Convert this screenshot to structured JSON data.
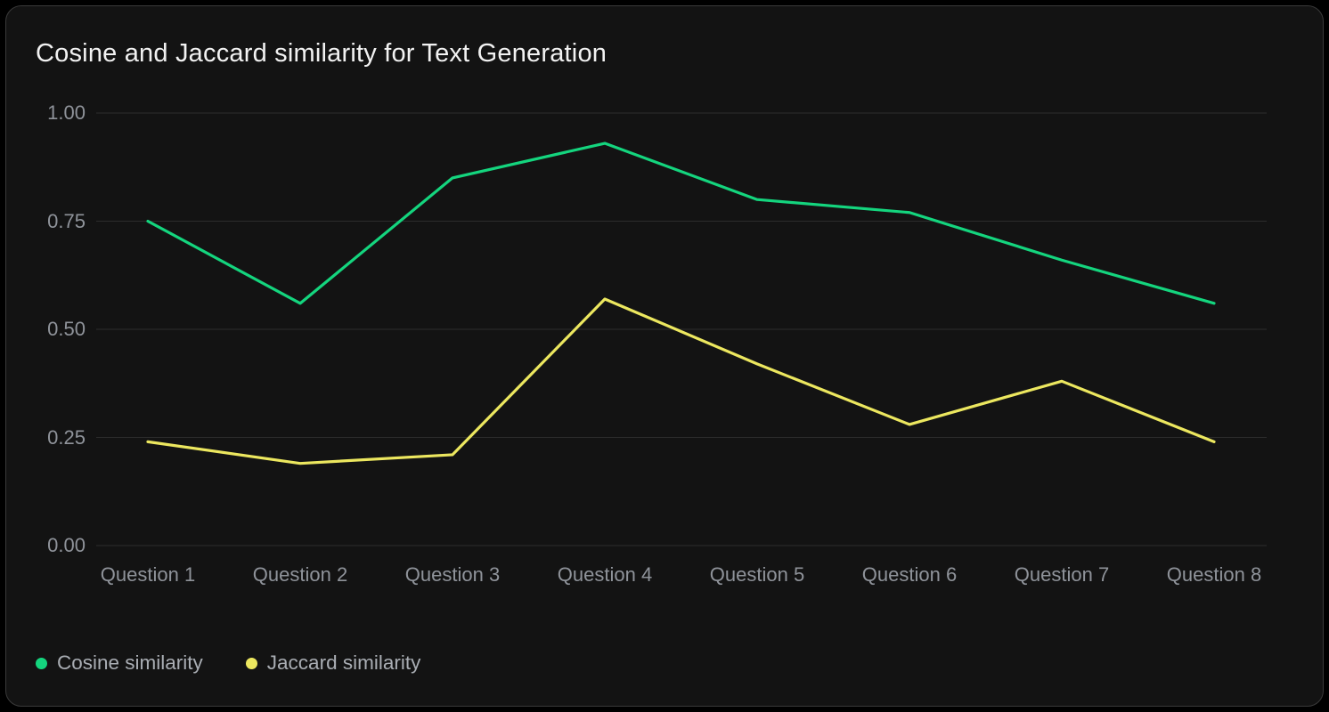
{
  "chart_data": {
    "type": "line",
    "title": "Cosine and Jaccard similarity for Text Generation",
    "categories": [
      "Question 1",
      "Question 2",
      "Question 3",
      "Question 4",
      "Question 5",
      "Question 6",
      "Question 7",
      "Question 8"
    ],
    "series": [
      {
        "name": "Cosine similarity",
        "color": "#14d57e",
        "values": [
          0.75,
          0.56,
          0.85,
          0.93,
          0.8,
          0.77,
          0.66,
          0.56
        ]
      },
      {
        "name": "Jaccard similarity",
        "color": "#ece75f",
        "values": [
          0.24,
          0.19,
          0.21,
          0.57,
          0.42,
          0.28,
          0.38,
          0.24
        ]
      }
    ],
    "xlabel": "",
    "ylabel": "",
    "ylim": [
      0,
      1
    ],
    "y_ticks": [
      "1.00",
      "0.75",
      "0.50",
      "0.25",
      "0.00"
    ],
    "grid": true,
    "legend_position": "bottom-left"
  },
  "colors": {
    "page_background": "#000000",
    "card_background": "#131313",
    "card_border": "#3a3a3a",
    "grid": "#2c2c2c",
    "title_text": "#f2f2f2",
    "axis_text": "#8f939a",
    "legend_text": "#a9adb3",
    "cosine_accent": "#14d57e",
    "jaccard_accent": "#ece75f"
  }
}
